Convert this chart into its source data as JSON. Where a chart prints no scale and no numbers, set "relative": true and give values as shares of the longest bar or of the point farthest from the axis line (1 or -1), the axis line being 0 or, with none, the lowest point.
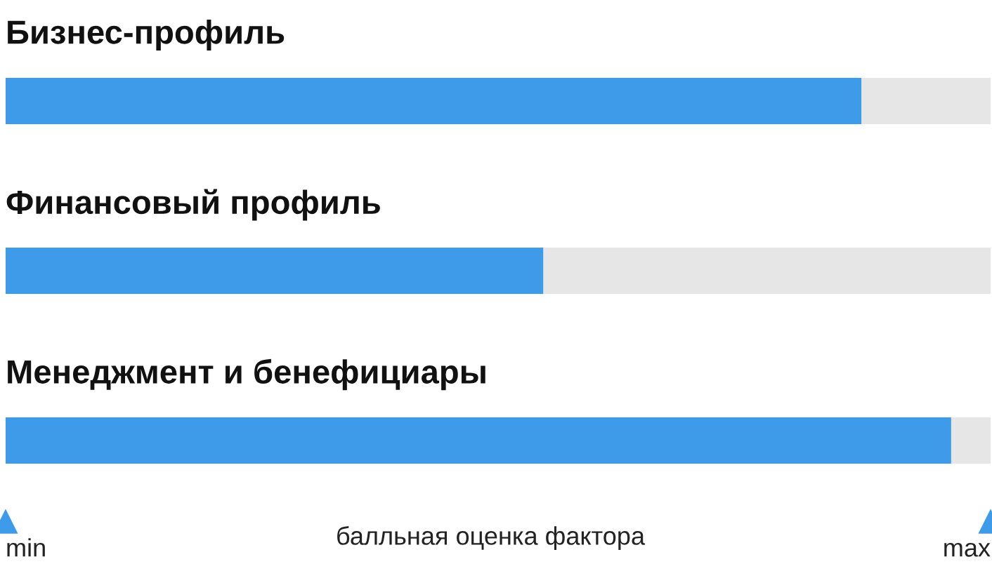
{
  "chart_data": {
    "type": "bar",
    "orientation": "horizontal",
    "stacked": true,
    "categories": [
      "Бизнес-профиль",
      "Финансовый профиль",
      "Менеджмент и бенефициары"
    ],
    "series": [
      {
        "color": "#3d9be9",
        "values": [
          0.869,
          0.546,
          0.96
        ]
      },
      {
        "color": "#e6e6e6",
        "values": [
          0.131,
          0.454,
          0.04
        ]
      }
    ],
    "relative": true,
    "annotations": [
      "min",
      "max"
    ],
    "xlabel": "балльная оценка фактора"
  }
}
